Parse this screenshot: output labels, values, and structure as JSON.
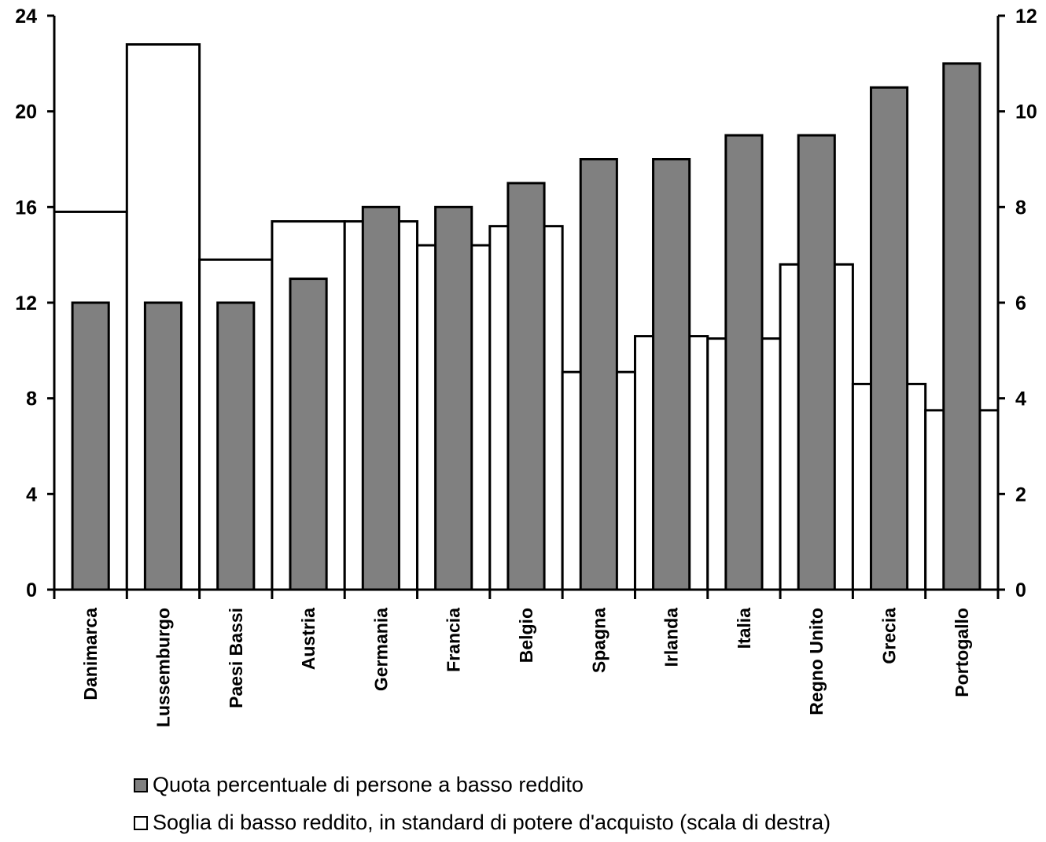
{
  "chart_data": {
    "type": "bar",
    "categories": [
      "Danimarca",
      "Lussemburgo",
      "Paesi Bassi",
      "Austria",
      "Germania",
      "Francia",
      "Belgio",
      "Spagna",
      "Irlanda",
      "Italia",
      "Regno Unito",
      "Grecia",
      "Portogallo"
    ],
    "series": [
      {
        "name": "Quota percentuale di persone a basso reddito",
        "axis": "left",
        "style": "filled-bar",
        "color": "#808080",
        "values": [
          12,
          12,
          12,
          13,
          16,
          16,
          17,
          18,
          18,
          19,
          19,
          21,
          22
        ]
      },
      {
        "name": "Soglia di basso reddito, in standard di potere d'acquisto (scala di destra)",
        "axis": "right",
        "style": "outline-step",
        "color": "#ffffff",
        "values": [
          7.9,
          11.4,
          6.9,
          7.7,
          7.7,
          7.2,
          7.6,
          4.55,
          5.3,
          5.25,
          6.8,
          4.3,
          3.75
        ]
      }
    ],
    "y_left": {
      "ylim": [
        0,
        24
      ],
      "ticks": [
        "0",
        "4",
        "8",
        "12",
        "16",
        "20",
        "24"
      ]
    },
    "y_right": {
      "ylim": [
        0,
        12
      ],
      "ticks": [
        "0",
        "2",
        "4",
        "6",
        "8",
        "10",
        "12"
      ]
    },
    "legend": {
      "placement": "bottom",
      "items": [
        {
          "label": "Quota percentuale di persone a basso reddito",
          "swatch": "#808080"
        },
        {
          "label": "Soglia di basso reddito, in standard di potere d'acquisto (scala di destra)",
          "swatch": "#ffffff"
        }
      ]
    },
    "grid": false
  }
}
